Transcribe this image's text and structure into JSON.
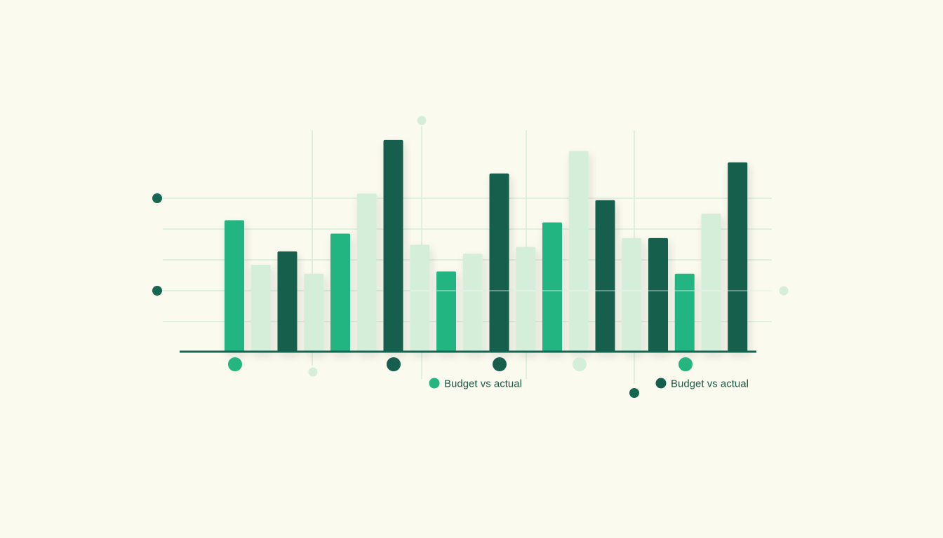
{
  "colors": {
    "background": "#fbfaee",
    "medium_green": "#24b581",
    "pale_green": "#d5eed9",
    "dark_green": "#165e4d",
    "gridline": "#d7ecd9",
    "baseline": "#176350",
    "marker_dark": "#17664f"
  },
  "chart_data": {
    "type": "bar",
    "title": "",
    "xlabel": "",
    "ylabel": "",
    "grid": true,
    "axis_labels_shown": false,
    "ylim": [
      0,
      100
    ],
    "bars": [
      {
        "value": 59,
        "color_key": "medium_green"
      },
      {
        "value": 39,
        "color_key": "pale_green"
      },
      {
        "value": 45,
        "color_key": "dark_green"
      },
      {
        "value": 35,
        "color_key": "pale_green"
      },
      {
        "value": 53,
        "color_key": "medium_green"
      },
      {
        "value": 71,
        "color_key": "pale_green"
      },
      {
        "value": 95,
        "color_key": "dark_green"
      },
      {
        "value": 48,
        "color_key": "pale_green"
      },
      {
        "value": 36,
        "color_key": "medium_green"
      },
      {
        "value": 44,
        "color_key": "pale_green"
      },
      {
        "value": 80,
        "color_key": "dark_green"
      },
      {
        "value": 47,
        "color_key": "pale_green"
      },
      {
        "value": 58,
        "color_key": "medium_green"
      },
      {
        "value": 90,
        "color_key": "pale_green"
      },
      {
        "value": 68,
        "color_key": "dark_green"
      },
      {
        "value": 51,
        "color_key": "pale_green"
      },
      {
        "value": 51,
        "color_key": "dark_green"
      },
      {
        "value": 35,
        "color_key": "medium_green"
      },
      {
        "value": 62,
        "color_key": "pale_green"
      },
      {
        "value": 85,
        "color_key": "dark_green"
      }
    ],
    "legend": [
      {
        "label": "Budget vs actual",
        "color_key": "medium_green"
      },
      {
        "label": "Budget vs actual",
        "color_key": "dark_green"
      }
    ]
  }
}
